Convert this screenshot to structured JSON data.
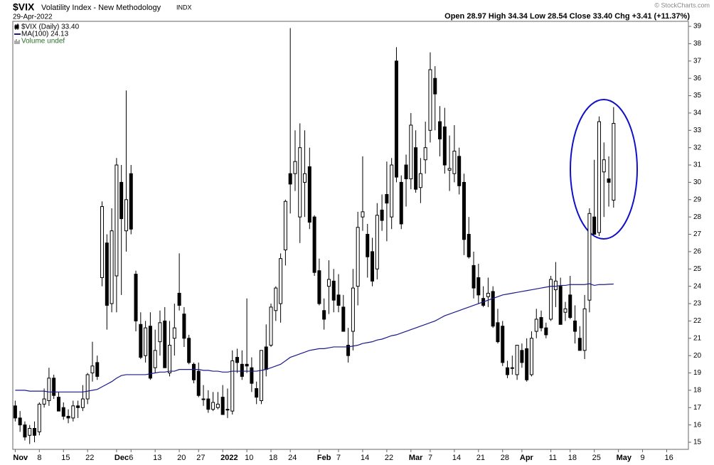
{
  "chart_data": {
    "type": "candlestick",
    "symbol": "$VIX",
    "title": "Volatility Index - New Methodology",
    "exchange": "INDX",
    "date": "29-Apr-2022",
    "quote": "Open 28.97 High 34.34 Low 28.54 Close 33.40 Chg +3.41 (+11.37%)",
    "copyright": "© StockCharts.com",
    "legend": [
      "$VIX (Daily) 33.40",
      "MA(100) 24.13",
      "Volume undef"
    ],
    "categories": [
      "Nov",
      null,
      null,
      null,
      null,
      "8",
      null,
      null,
      null,
      null,
      "15",
      null,
      null,
      null,
      null,
      "22",
      null,
      null,
      null,
      null,
      null,
      "Dec",
      null,
      null,
      "6",
      null,
      null,
      null,
      null,
      "13",
      null,
      null,
      null,
      null,
      "20",
      null,
      null,
      null,
      "27",
      null,
      null,
      null,
      null,
      "2022",
      null,
      null,
      null,
      null,
      "10",
      null,
      null,
      null,
      null,
      "18",
      null,
      null,
      null,
      "24",
      null,
      null,
      null,
      null,
      null,
      "Feb",
      null,
      null,
      null,
      "7",
      null,
      null,
      null,
      null,
      "14",
      null,
      null,
      null,
      null,
      "22",
      null,
      null,
      null,
      null,
      "Mar",
      null,
      null,
      null,
      "7",
      null,
      null,
      null,
      null,
      "14",
      null,
      null,
      null,
      null,
      "21",
      null,
      null,
      null,
      null,
      "28",
      null,
      null,
      null,
      "Apr",
      null,
      null,
      null,
      null,
      null,
      "11",
      null,
      null,
      null,
      "18",
      null,
      null,
      null,
      null,
      "25",
      null,
      null,
      null,
      null,
      "May",
      null,
      null,
      null,
      null,
      "9",
      null,
      null,
      null,
      null,
      "16",
      null,
      null,
      null,
      null
    ],
    "open": [
      17.1,
      16.4,
      16.0,
      15.4,
      15.8,
      15.6,
      17.2,
      17.4,
      18.7,
      17.6,
      17.0,
      16.5,
      16.4,
      17.1,
      17.0,
      17.5,
      19.0,
      19.6,
      24.5,
      26.5,
      23.0,
      24.6,
      30.0,
      27.2,
      30.5,
      24.7,
      21.8,
      20.0,
      21.7,
      19.3,
      20.8,
      22.0,
      19.0,
      21.0,
      23.6,
      22.4,
      21.0,
      19.5,
      19.1,
      17.5,
      17.5,
      16.9,
      17.0,
      17.6,
      16.9,
      16.8,
      19.9,
      19.5,
      19.5,
      19.3,
      18.1,
      17.4,
      20.5,
      20.6,
      22.6,
      23.0,
      26.1,
      30.5,
      30.5,
      28.0,
      30.0,
      30.9,
      28.0,
      24.9,
      22.6,
      24.0,
      24.3,
      23.5,
      22.8,
      20.6,
      21.4,
      24.0,
      28.0,
      27.0,
      26.0,
      25.0,
      28.4,
      29.3,
      28.0,
      37.0,
      30.0,
      31.0,
      30.2,
      32.0,
      29.7,
      31.3,
      33.0,
      36.0,
      33.5,
      33.2,
      30.7,
      30.5,
      31.5,
      30.0,
      27.0,
      25.2,
      24.5,
      23.3,
      23.4,
      23.7,
      21.9,
      21.7,
      19.3,
      19.3,
      18.9,
      20.3,
      20.4,
      18.9,
      21.4,
      22.2,
      21.6,
      22.1,
      23.8,
      24.0,
      22.5,
      23.5,
      22.0,
      21.0,
      20.3,
      23.2,
      28.0,
      27.1,
      30.6,
      30.2,
      28.97,
      null,
      null,
      null,
      null,
      null,
      null,
      null,
      null,
      null,
      null,
      null,
      null,
      null,
      null,
      null
    ],
    "high": [
      17.4,
      16.8,
      16.2,
      16.0,
      16.2,
      17.3,
      18.1,
      19.3,
      18.9,
      17.9,
      17.3,
      16.9,
      17.4,
      17.4,
      18.3,
      19.0,
      20.8,
      20.0,
      28.9,
      27.0,
      28.5,
      31.4,
      31.0,
      35.3,
      31.0,
      24.9,
      22.5,
      22.0,
      22.5,
      21.5,
      22.6,
      22.8,
      22.0,
      23.0,
      25.9,
      22.8,
      21.2,
      19.6,
      19.6,
      18.3,
      18.0,
      17.9,
      17.9,
      18.3,
      18.1,
      20.3,
      20.4,
      20.3,
      23.3,
      19.9,
      18.5,
      20.3,
      21.8,
      23.0,
      24.0,
      25.9,
      29.0,
      38.9,
      33.0,
      33.4,
      33.0,
      32.0,
      28.1,
      25.6,
      23.3,
      25.5,
      25.0,
      24.7,
      23.5,
      21.6,
      25.0,
      28.3,
      31.5,
      27.6,
      26.8,
      28.8,
      29.3,
      31.2,
      31.4,
      37.8,
      30.4,
      31.6,
      34.0,
      33.0,
      31.4,
      33.5,
      37.5,
      36.7,
      34.4,
      34.3,
      32.7,
      33.3,
      32.0,
      30.5,
      28.0,
      26.0,
      25.3,
      24.0,
      24.5,
      24.0,
      22.7,
      22.0,
      19.7,
      20.0,
      20.6,
      20.7,
      21.0,
      21.4,
      22.7,
      22.6,
      21.9,
      24.6,
      25.4,
      24.5,
      23.1,
      24.6,
      22.9,
      21.7,
      23.5,
      28.5,
      31.3,
      33.8,
      32.3,
      31.5,
      34.34,
      null,
      null,
      null,
      null,
      null,
      null,
      null,
      null,
      null,
      null,
      null,
      null,
      null,
      null,
      null
    ],
    "low": [
      16.2,
      15.6,
      15.1,
      14.9,
      15.0,
      15.4,
      17.0,
      17.1,
      17.5,
      16.8,
      16.3,
      16.1,
      16.2,
      16.4,
      16.8,
      17.2,
      18.5,
      18.6,
      24.0,
      21.5,
      22.5,
      22.5,
      23.5,
      26.0,
      27.0,
      21.4,
      19.8,
      19.6,
      18.6,
      19.0,
      20.0,
      19.3,
      18.8,
      20.0,
      22.6,
      20.5,
      19.5,
      18.4,
      17.6,
      17.1,
      16.7,
      16.8,
      16.9,
      16.6,
      16.4,
      16.6,
      19.0,
      18.6,
      19.0,
      17.9,
      17.2,
      17.2,
      18.8,
      20.5,
      22.0,
      21.9,
      25.2,
      28.2,
      29.5,
      26.5,
      28.0,
      27.3,
      24.6,
      22.9,
      21.5,
      22.4,
      22.5,
      22.5,
      21.4,
      19.6,
      20.3,
      22.9,
      27.2,
      24.5,
      24.0,
      24.4,
      27.2,
      26.6,
      27.3,
      30.0,
      27.3,
      28.6,
      29.6,
      29.4,
      28.8,
      30.5,
      32.3,
      33.0,
      31.5,
      30.5,
      29.5,
      30.0,
      29.3,
      25.8,
      25.6,
      23.3,
      23.0,
      22.8,
      22.8,
      21.6,
      20.7,
      19.4,
      18.7,
      18.9,
      18.6,
      19.3,
      18.5,
      18.8,
      21.0,
      21.4,
      21.0,
      22.0,
      22.8,
      21.8,
      22.0,
      22.1,
      20.7,
      20.3,
      19.8,
      22.5,
      27.0,
      26.9,
      28.0,
      28.6,
      28.54,
      null,
      null,
      null,
      null,
      null,
      null,
      null,
      null,
      null,
      null,
      null,
      null,
      null,
      null,
      null
    ],
    "close": [
      16.4,
      16.0,
      15.3,
      15.8,
      15.4,
      17.2,
      17.5,
      18.7,
      17.7,
      16.8,
      16.5,
      16.4,
      17.1,
      17.0,
      17.5,
      18.9,
      19.4,
      18.8,
      28.6,
      22.9,
      27.2,
      31.0,
      27.9,
      29.0,
      27.3,
      22.0,
      19.9,
      21.6,
      18.7,
      20.3,
      21.9,
      19.3,
      20.6,
      21.6,
      22.9,
      21.0,
      19.6,
      18.6,
      17.7,
      17.5,
      16.9,
      17.3,
      17.2,
      16.6,
      16.9,
      19.7,
      19.6,
      18.8,
      19.4,
      18.4,
      17.6,
      20.3,
      19.2,
      22.8,
      23.9,
      25.6,
      28.9,
      29.9,
      31.2,
      32.0,
      30.5,
      27.7,
      24.8,
      23.0,
      22.1,
      24.4,
      23.2,
      22.9,
      21.4,
      20.0,
      23.9,
      27.4,
      28.3,
      25.7,
      24.3,
      28.1,
      27.8,
      28.8,
      31.0,
      30.3,
      27.6,
      30.2,
      33.3,
      29.6,
      30.5,
      32.0,
      36.5,
      35.1,
      32.5,
      31.0,
      30.8,
      31.8,
      29.8,
      26.7,
      25.7,
      23.9,
      23.5,
      22.9,
      23.6,
      21.7,
      20.8,
      19.6,
      18.9,
      19.3,
      20.6,
      19.6,
      18.6,
      21.0,
      22.1,
      21.6,
      21.2,
      24.4,
      24.3,
      21.8,
      22.7,
      22.2,
      21.4,
      20.3,
      22.7,
      28.2,
      27.0,
      33.5,
      31.3,
      30.0,
      33.4,
      null,
      null,
      null,
      null,
      null,
      null,
      null,
      null,
      null,
      null,
      null,
      null,
      null,
      null,
      null
    ],
    "ma": {
      "color": "#1a1a8c",
      "values": [
        18.0,
        18.0,
        18.0,
        17.95,
        17.95,
        17.95,
        17.95,
        17.9,
        17.9,
        17.9,
        17.9,
        17.9,
        17.9,
        17.9,
        17.9,
        17.95,
        18.0,
        18.05,
        18.2,
        18.35,
        18.5,
        18.7,
        18.85,
        18.9,
        18.9,
        18.9,
        18.9,
        18.9,
        18.95,
        19.0,
        19.05,
        19.05,
        19.1,
        19.1,
        19.2,
        19.2,
        19.2,
        19.2,
        19.2,
        19.15,
        19.15,
        19.1,
        19.1,
        19.05,
        19.05,
        19.1,
        19.1,
        19.1,
        19.1,
        19.1,
        19.1,
        19.15,
        19.2,
        19.3,
        19.4,
        19.5,
        19.7,
        19.9,
        20.0,
        20.1,
        20.2,
        20.3,
        20.35,
        20.4,
        20.4,
        20.45,
        20.5,
        20.5,
        20.5,
        20.5,
        20.55,
        20.6,
        20.7,
        20.75,
        20.8,
        20.9,
        20.95,
        21.05,
        21.15,
        21.2,
        21.3,
        21.4,
        21.5,
        21.6,
        21.7,
        21.8,
        21.9,
        22.0,
        22.15,
        22.3,
        22.4,
        22.5,
        22.6,
        22.7,
        22.8,
        22.9,
        23.0,
        23.1,
        23.2,
        23.3,
        23.4,
        23.5,
        23.55,
        23.6,
        23.65,
        23.7,
        23.75,
        23.8,
        23.85,
        23.9,
        23.95,
        24.0,
        24.0,
        24.05,
        24.05,
        24.1,
        24.1,
        24.1,
        24.1,
        24.15,
        24.05,
        24.1,
        24.1,
        24.12,
        24.13,
        null,
        null,
        null,
        null,
        null,
        null,
        null,
        null,
        null,
        null,
        null,
        null,
        null,
        null,
        null
      ]
    },
    "up_color": "#ffffff",
    "down_color": "#000000",
    "ylim": [
      14.59,
      39.29
    ],
    "yticks": [
      15,
      16,
      17,
      18,
      19,
      20,
      21,
      22,
      23,
      24,
      25,
      26,
      27,
      28,
      29,
      30,
      31,
      32,
      33,
      34,
      35,
      36,
      37,
      38,
      39
    ],
    "grid": false
  }
}
